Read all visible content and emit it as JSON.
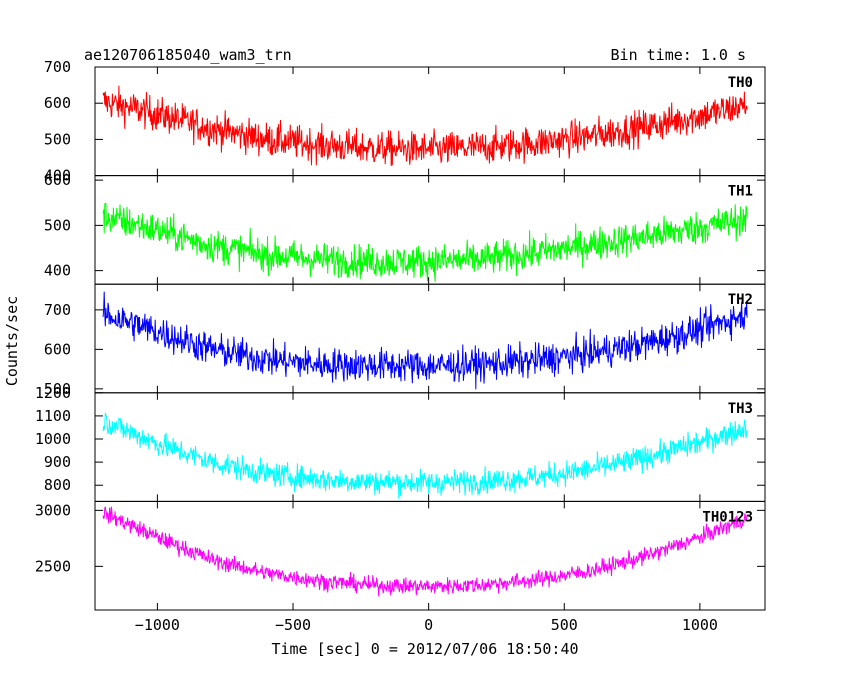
{
  "chart_data": {
    "type": "line",
    "title": "ae120706185040_wam3_trn",
    "subtitle": "Bin time: 1.0 s",
    "xlabel": "Time [sec] 0 = 2012/07/06 18:50:40",
    "ylabel": "Counts/sec",
    "xlim": [
      -1230,
      1240
    ],
    "x_ticks": [
      -1000,
      -500,
      0,
      500,
      1000
    ],
    "x_tick_labels": [
      "−1000",
      "−500",
      "0",
      "500",
      "1000"
    ],
    "grid": false,
    "x_range_data": [
      -1200,
      1175
    ],
    "panels": [
      {
        "name": "TH0",
        "color": "#ff0000",
        "ylim": [
          400,
          700
        ],
        "y_ticks": [
          400,
          500,
          600,
          700
        ],
        "y_tick_labels": [
          "400",
          "500",
          "600",
          "700"
        ],
        "trend_x": [
          -1200,
          -1000,
          -800,
          -600,
          -400,
          -200,
          0,
          200,
          400,
          600,
          800,
          1000,
          1175
        ],
        "trend_y": [
          605,
          570,
          530,
          500,
          485,
          475,
          472,
          478,
          490,
          510,
          535,
          565,
          595
        ],
        "noise_amplitude": 45
      },
      {
        "name": "TH1",
        "color": "#00ff00",
        "ylim": [
          370,
          610
        ],
        "y_ticks": [
          400,
          500,
          600
        ],
        "y_tick_labels": [
          "400",
          "500",
          "600"
        ],
        "trend_x": [
          -1200,
          -1000,
          -800,
          -600,
          -400,
          -200,
          0,
          200,
          400,
          600,
          800,
          1000,
          1175
        ],
        "trend_y": [
          520,
          490,
          455,
          435,
          425,
          420,
          420,
          425,
          440,
          458,
          475,
          495,
          515
        ],
        "noise_amplitude": 35
      },
      {
        "name": "TH2",
        "color": "#0000ff",
        "ylim": [
          490,
          765
        ],
        "y_ticks": [
          500,
          600,
          700
        ],
        "y_tick_labels": [
          "500",
          "600",
          "700"
        ],
        "trend_x": [
          -1200,
          -1000,
          -800,
          -600,
          -400,
          -200,
          0,
          200,
          400,
          600,
          800,
          1000,
          1175
        ],
        "trend_y": [
          690,
          645,
          600,
          575,
          562,
          560,
          558,
          562,
          572,
          590,
          615,
          650,
          690
        ],
        "noise_amplitude": 40
      },
      {
        "name": "TH3",
        "color": "#00ffff",
        "ylim": [
          730,
          1200
        ],
        "y_ticks": [
          800,
          900,
          1000,
          1100,
          1200
        ],
        "y_tick_labels": [
          "800",
          "900",
          "1000",
          "1100",
          "1200"
        ],
        "trend_x": [
          -1200,
          -1000,
          -800,
          -600,
          -400,
          -200,
          0,
          200,
          400,
          600,
          800,
          1000,
          1175
        ],
        "trend_y": [
          1080,
          980,
          900,
          850,
          825,
          815,
          812,
          818,
          835,
          870,
          920,
          985,
          1050
        ],
        "noise_amplitude": 50
      },
      {
        "name": "TH0123",
        "color": "#ff00ff",
        "ylim": [
          2110,
          3080
        ],
        "y_ticks": [
          2500,
          3000
        ],
        "y_tick_labels": [
          "2500",
          "3000"
        ],
        "trend_x": [
          -1200,
          -1000,
          -800,
          -600,
          -400,
          -200,
          0,
          200,
          400,
          600,
          800,
          1000,
          1175
        ],
        "trend_y": [
          2980,
          2760,
          2560,
          2440,
          2370,
          2330,
          2320,
          2335,
          2380,
          2460,
          2590,
          2760,
          2930
        ],
        "noise_amplitude": 70
      }
    ]
  }
}
